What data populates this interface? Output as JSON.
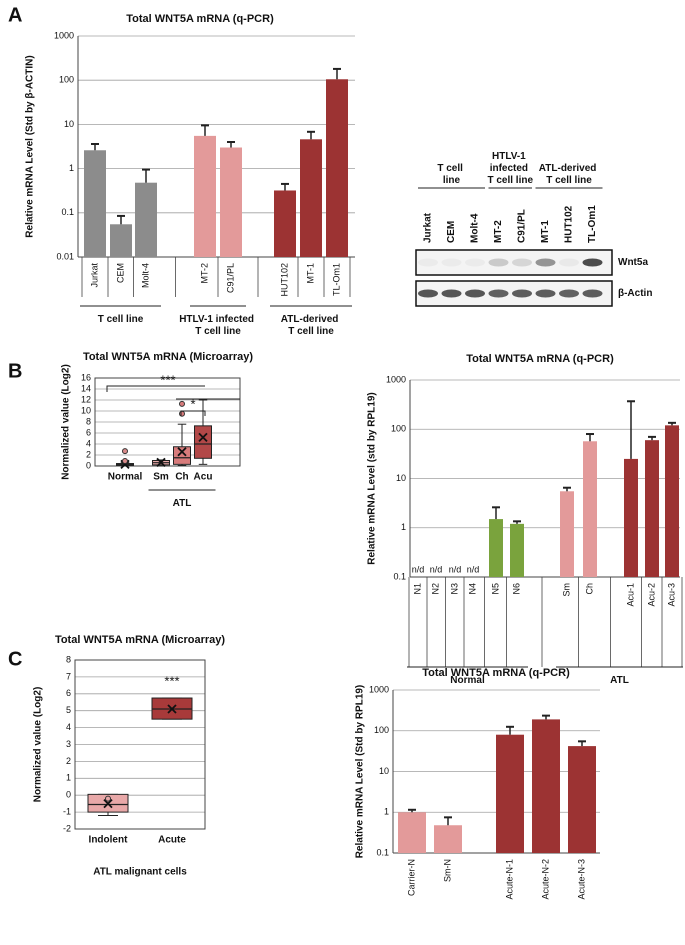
{
  "panels": [
    "A",
    "B",
    "C"
  ],
  "chart_data": [
    {
      "type": "bar",
      "title": "Total WNT5A mRNA (q-PCR)",
      "y_label": "Relative mRNA Level (Std by β-ACTIN)",
      "log_scale": true,
      "ylim": [
        0.01,
        1000
      ],
      "yticks": [
        0.01,
        0.1,
        1,
        10,
        100,
        1000
      ],
      "grid": true,
      "categories": [
        "Jurkat",
        "CEM",
        "Molt-4",
        "MT-2",
        "C91/PL",
        "HUT102",
        "MT-1",
        "TL-Om1"
      ],
      "values": [
        2.6,
        0.055,
        0.48,
        5.5,
        3.0,
        0.32,
        4.6,
        105
      ],
      "error_upper": [
        3.6,
        0.085,
        0.95,
        9.5,
        4.0,
        0.45,
        6.8,
        180
      ],
      "colors": [
        "#8c8c8c",
        "#8c8c8c",
        "#8c8c8c",
        "#e39a9a",
        "#e39a9a",
        "#9c3333",
        "#9c3333",
        "#9c3333"
      ],
      "groups": [
        {
          "name": "T cell line",
          "members": [
            "Jurkat",
            "CEM",
            "Molt-4"
          ]
        },
        {
          "name": "HTLV-1 infected T cell line",
          "members": [
            "MT-2",
            "C91/PL"
          ]
        },
        {
          "name": "ATL-derived T cell line",
          "members": [
            "HUT102",
            "MT-1",
            "TL-Om1"
          ]
        }
      ]
    },
    {
      "type": "box",
      "title": "Total WNT5A mRNA (Microarray)",
      "y_label": "Normalized value (Log2)",
      "ylim": [
        0,
        16
      ],
      "yticks": [
        0,
        2,
        4,
        6,
        8,
        10,
        12,
        14,
        16
      ],
      "grid": true,
      "categories": [
        "Normal",
        "Sm",
        "Ch",
        "Acu"
      ],
      "boxes": [
        {
          "min": 0,
          "q1": 0.1,
          "median": 0.25,
          "q3": 0.45,
          "max": 0.6,
          "mean": 0.3,
          "outliers": [
            2.7,
            0.9
          ]
        },
        {
          "min": 0,
          "q1": 0.2,
          "median": 0.6,
          "q3": 1.0,
          "max": 1.1,
          "mean": 0.65,
          "outliers": []
        },
        {
          "min": 0.1,
          "q1": 0.3,
          "median": 1.5,
          "q3": 3.5,
          "max": 7.6,
          "mean": 2.6,
          "outliers": [
            9.5,
            11.3
          ]
        },
        {
          "min": 0.3,
          "q1": 1.4,
          "median": 4.0,
          "q3": 7.3,
          "max": 12,
          "mean": 5.2,
          "outliers": []
        }
      ],
      "colors": [
        "#d88a8a",
        "#e8a8a8",
        "#d77b7b",
        "#b24848"
      ],
      "groups": [
        {
          "name": "ATL",
          "members": [
            "Sm",
            "Ch",
            "Acu"
          ]
        }
      ],
      "annotations": [
        "***",
        "*"
      ]
    },
    {
      "type": "bar",
      "title": "Total WNT5A mRNA (q-PCR)",
      "y_label": "Relative mRNA Level (std by RPL19)",
      "log_scale": true,
      "ylim": [
        0.1,
        1000
      ],
      "yticks": [
        0.1,
        1,
        10,
        100,
        1000
      ],
      "grid": true,
      "categories": [
        "N1",
        "N2",
        "N3",
        "N4",
        "N5",
        "N6",
        "Sm",
        "Ch",
        "Acu-1",
        "Acu-2",
        "Acu-3"
      ],
      "values": [
        null,
        null,
        null,
        null,
        1.5,
        1.2,
        5.5,
        57,
        25,
        60,
        120
      ],
      "value_labels": [
        "n/d",
        "n/d",
        "n/d",
        "n/d",
        null,
        null,
        null,
        null,
        null,
        null,
        null
      ],
      "error_upper": [
        null,
        null,
        null,
        null,
        2.6,
        1.35,
        6.5,
        80,
        370,
        70,
        135
      ],
      "colors": [
        "#7aa33d",
        "#7aa33d",
        "#7aa33d",
        "#7aa33d",
        "#7aa33d",
        "#7aa33d",
        "#e39a9a",
        "#e39a9a",
        "#9c3333",
        "#9c3333",
        "#9c3333"
      ],
      "groups": [
        {
          "name": "Normal",
          "members": [
            "N1",
            "N2",
            "N3",
            "N4",
            "N5",
            "N6"
          ]
        },
        {
          "name": "ATL",
          "members": [
            "Sm",
            "Ch",
            "Acu-1",
            "Acu-2",
            "Acu-3"
          ]
        }
      ]
    },
    {
      "type": "box",
      "title": "Total WNT5A mRNA (Microarray)",
      "y_label": "Normalized value (Log2)",
      "x_label": "ATL malignant cells",
      "ylim": [
        -2,
        8
      ],
      "yticks": [
        -2,
        -1,
        0,
        1,
        2,
        3,
        4,
        5,
        6,
        7,
        8
      ],
      "grid": true,
      "categories": [
        "Indolent",
        "Acute"
      ],
      "boxes": [
        {
          "min": -1.2,
          "q1": -1.0,
          "median": -0.55,
          "q3": 0.05,
          "max": 0.05,
          "mean": -0.5,
          "outliers": [
            -0.2
          ]
        },
        {
          "min": 4.5,
          "q1": 4.5,
          "median": 5.1,
          "q3": 5.75,
          "max": 5.75,
          "mean": 5.1,
          "outliers": []
        }
      ],
      "colors": [
        "#e8a8a8",
        "#a83a3a"
      ],
      "annotations": [
        "***"
      ]
    },
    {
      "type": "bar",
      "title": "Total WNT5A mRNA (q-PCR)",
      "y_label": "Relative mRNA Level (Std by RPL19)",
      "log_scale": true,
      "ylim": [
        0.1,
        1000
      ],
      "yticks": [
        0.1,
        1,
        10,
        100,
        1000
      ],
      "grid": true,
      "categories": [
        "Carrier-N",
        "Sm-N",
        "Acute-N-1",
        "Acute-N-2",
        "Acute-N-3"
      ],
      "values": [
        1.0,
        0.48,
        80,
        190,
        42
      ],
      "error_upper": [
        1.15,
        0.75,
        125,
        235,
        55
      ],
      "colors": [
        "#e39a9a",
        "#e39a9a",
        "#9c3333",
        "#9c3333",
        "#9c3333"
      ]
    }
  ],
  "blot": {
    "lanes": [
      "Jurkat",
      "CEM",
      "Molt-4",
      "MT-2",
      "C91/PL",
      "MT-1",
      "HUT102",
      "TL-Om1"
    ],
    "groups": [
      {
        "name": "T cell line",
        "members": [
          "Jurkat",
          "CEM",
          "Molt-4"
        ]
      },
      {
        "name": "HTLV-1 infected T cell line",
        "members": [
          "MT-2",
          "C91/PL"
        ]
      },
      {
        "name": "ATL-derived T cell line",
        "members": [
          "MT-1",
          "HUT102",
          "TL-Om1"
        ]
      }
    ],
    "bands": [
      "Wnt5a",
      "β-Actin"
    ]
  }
}
